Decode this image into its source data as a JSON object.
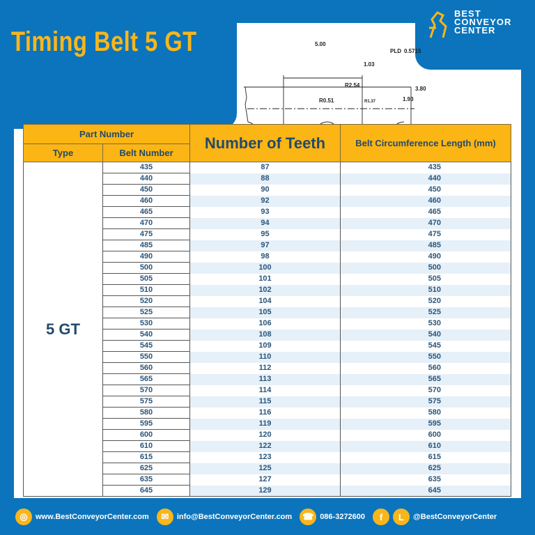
{
  "title": "Timing Belt 5 GT",
  "logo": {
    "line1": "BEST",
    "line2": "CONVEYOR",
    "line3": "CENTER"
  },
  "diagram": {
    "pitch": "5.00",
    "pld_label": "PLD",
    "pld_value": "0.5715",
    "d1": "1.03",
    "r1": "R2.54",
    "r2": "R0.51",
    "r3": "R1.37",
    "h1": "3.80",
    "h2": "1.93"
  },
  "table": {
    "headers": {
      "part_number": "Part Number",
      "type": "Type",
      "belt_number": "Belt Number",
      "teeth": "Number of Teeth",
      "length": "Belt Circumference Length (mm)"
    },
    "type_value": "5 GT",
    "rows": [
      [
        "435",
        "87",
        "435"
      ],
      [
        "440",
        "88",
        "440"
      ],
      [
        "450",
        "90",
        "450"
      ],
      [
        "460",
        "92",
        "460"
      ],
      [
        "465",
        "93",
        "465"
      ],
      [
        "470",
        "94",
        "470"
      ],
      [
        "475",
        "95",
        "475"
      ],
      [
        "485",
        "97",
        "485"
      ],
      [
        "490",
        "98",
        "490"
      ],
      [
        "500",
        "100",
        "500"
      ],
      [
        "505",
        "101",
        "505"
      ],
      [
        "510",
        "102",
        "510"
      ],
      [
        "520",
        "104",
        "520"
      ],
      [
        "525",
        "105",
        "525"
      ],
      [
        "530",
        "106",
        "530"
      ],
      [
        "540",
        "108",
        "540"
      ],
      [
        "545",
        "109",
        "545"
      ],
      [
        "550",
        "110",
        "550"
      ],
      [
        "560",
        "112",
        "560"
      ],
      [
        "565",
        "113",
        "565"
      ],
      [
        "570",
        "114",
        "570"
      ],
      [
        "575",
        "115",
        "575"
      ],
      [
        "580",
        "116",
        "580"
      ],
      [
        "595",
        "119",
        "595"
      ],
      [
        "600",
        "120",
        "600"
      ],
      [
        "610",
        "122",
        "610"
      ],
      [
        "615",
        "123",
        "615"
      ],
      [
        "625",
        "125",
        "625"
      ],
      [
        "635",
        "127",
        "635"
      ],
      [
        "645",
        "129",
        "645"
      ]
    ]
  },
  "footer": {
    "website": "www.BestConveyorCenter.com",
    "email": "info@BestConveyorCenter.com",
    "phone": "086-3272600",
    "line_label": "L",
    "social": "@BestConveyorCenter"
  },
  "colors": {
    "brand_blue": "#0b74bc",
    "accent_yellow": "#f9b61a",
    "text_navy": "#234a6b"
  }
}
